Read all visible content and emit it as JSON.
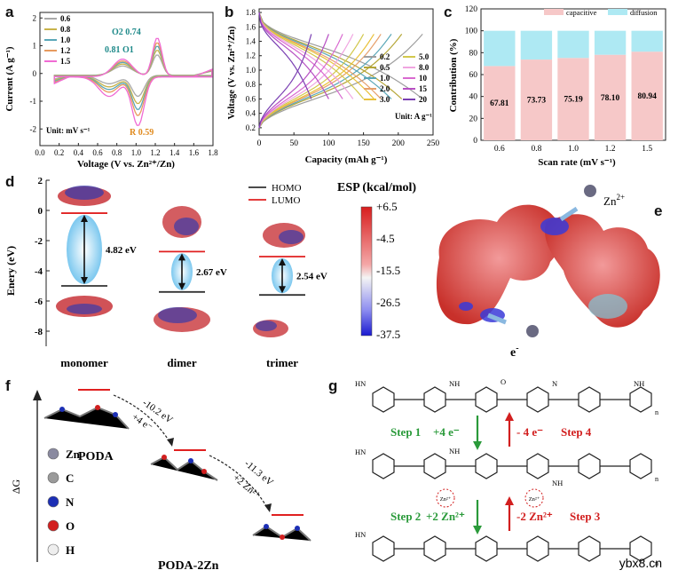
{
  "panel_labels": {
    "a": "a",
    "b": "b",
    "c": "c",
    "d": "d",
    "e": "e",
    "f": "f",
    "g": "g"
  },
  "chart_data": [
    {
      "type": "line",
      "panel": "a",
      "xlabel": "Voltage (V vs. Zn²⁺/Zn)",
      "ylabel": "Current (A g⁻¹)",
      "xlim": [
        0.0,
        1.8
      ],
      "ylim": [
        -2.6,
        2.2
      ],
      "xticks": [
        "0.0",
        "0.2",
        "0.4",
        "0.6",
        "0.8",
        "1.0",
        "1.2",
        "1.4",
        "1.6",
        "1.8"
      ],
      "yticks": [
        "-2",
        "-1",
        "0",
        "1",
        "2"
      ],
      "series": [
        {
          "name": "0.6",
          "color": "#a9a9a9",
          "anodic_peak": 0.74,
          "cathodic_peak": -0.75
        },
        {
          "name": "0.8",
          "color": "#c8b34a",
          "anodic_peak": 0.92,
          "cathodic_peak": -1.0
        },
        {
          "name": "1.0",
          "color": "#5aa7b8",
          "anodic_peak": 1.08,
          "cathodic_peak": -1.2
        },
        {
          "name": "1.2",
          "color": "#e79b5f",
          "anodic_peak": 1.22,
          "cathodic_peak": -1.4
        },
        {
          "name": "1.5",
          "color": "#f06bd4",
          "anodic_peak": 1.4,
          "cathodic_peak": -1.75
        }
      ],
      "annotations": [
        {
          "text": "O2",
          "value": "0.74",
          "color": "#1f8a8a"
        },
        {
          "text": "0.81",
          "value": "O1",
          "color": "#1f8a8a"
        },
        {
          "text": "R",
          "value": "0.59",
          "color": "#e08a1e"
        }
      ],
      "unit_note": "Unit: mV s⁻¹"
    },
    {
      "type": "line",
      "panel": "b",
      "xlabel": "Capacity (mAh g⁻¹)",
      "ylabel": "Voltage (V vs. Zn²⁺/Zn)",
      "xlim": [
        0,
        250
      ],
      "ylim": [
        0.1,
        1.85
      ],
      "xticks": [
        "0",
        "50",
        "100",
        "150",
        "200",
        "250"
      ],
      "yticks": [
        "0.2",
        "0.4",
        "0.6",
        "0.8",
        "1.0",
        "1.2",
        "1.4",
        "1.6",
        "1.8"
      ],
      "series": [
        {
          "name": "0.2",
          "color": "#9e9e9e",
          "capacity": 235
        },
        {
          "name": "0.5",
          "color": "#b5a637",
          "capacity": 205
        },
        {
          "name": "1.0",
          "color": "#5aa7b8",
          "capacity": 190
        },
        {
          "name": "2.0",
          "color": "#e6a06b",
          "capacity": 175
        },
        {
          "name": "3.0",
          "color": "#e9c13a",
          "capacity": 165
        },
        {
          "name": "5.0",
          "color": "#d2c84d",
          "capacity": 150
        },
        {
          "name": "8.0",
          "color": "#f0a5e0",
          "capacity": 135
        },
        {
          "name": "10",
          "color": "#d96ad0",
          "capacity": 120
        },
        {
          "name": "15",
          "color": "#b74fc3",
          "capacity": 100
        },
        {
          "name": "20",
          "color": "#7a3fb2",
          "capacity": 75
        }
      ],
      "unit_note": "Unit: A g⁻¹"
    },
    {
      "type": "bar",
      "panel": "c",
      "xlabel": "Scan rate (mV s⁻¹)",
      "ylabel": "Contribution (%)",
      "ylim": [
        0,
        120
      ],
      "yticks": [
        "0",
        "20",
        "40",
        "60",
        "80",
        "100",
        "120"
      ],
      "categories": [
        "0.6",
        "0.8",
        "1.0",
        "1.2",
        "1.5"
      ],
      "series": [
        {
          "name": "capacitive",
          "color": "#f6c8c8",
          "values": [
            67.81,
            73.73,
            75.19,
            78.1,
            80.94
          ]
        },
        {
          "name": "diffusion",
          "color": "#aee9f3",
          "values": [
            32.19,
            26.27,
            24.81,
            21.9,
            19.06
          ]
        }
      ],
      "data_labels": [
        "67.81",
        "73.73",
        "75.19",
        "78.10",
        "80.94"
      ]
    },
    {
      "type": "bar",
      "panel": "d",
      "ylabel": "Enery (eV)",
      "ylim": [
        -9,
        2
      ],
      "yticks": [
        "2",
        "0",
        "-2",
        "-4",
        "-6",
        "-8"
      ],
      "categories": [
        "monomer",
        "dimer",
        "trimer"
      ],
      "series": [
        {
          "name": "HOMO",
          "color": "#333333",
          "values": [
            -5.0,
            -5.4,
            -5.6
          ]
        },
        {
          "name": "LUMO",
          "color": "#e02020",
          "values": [
            -0.18,
            -2.73,
            -3.06
          ]
        }
      ],
      "gaps": [
        "4.82 eV",
        "2.67 eV",
        "2.54 eV"
      ]
    }
  ],
  "panel_e": {
    "esp_title": "ESP",
    "esp_unit": "(kcal/mol)",
    "scale": [
      "+6.5",
      "-4.5",
      "-15.5",
      "-26.5",
      "-37.5"
    ],
    "zn_label": "Zn",
    "zn_sup": "2+",
    "e_label": "e",
    "e_sup": "-"
  },
  "panel_f": {
    "axis": "ΔG",
    "mol1": "PODA",
    "mol2": "PODA-2Zn",
    "step1_energy": "-10.2 eV",
    "step1_species": "+4 e⁻",
    "step2_energy": "-11.3 eV",
    "step2_species": "+2 Zn²⁺",
    "legend": [
      {
        "label": "Zn",
        "color": "#8a8aa0"
      },
      {
        "label": "C",
        "color": "#9a9a9a"
      },
      {
        "label": "N",
        "color": "#1c2fb5"
      },
      {
        "label": "O",
        "color": "#d21f1f"
      },
      {
        "label": "H",
        "color": "#eeeeee"
      }
    ]
  },
  "panel_g": {
    "step1": "Step 1",
    "step1_rxn": "+4 e⁻",
    "step4_rxn": "- 4 e⁻",
    "step4": "Step 4",
    "step2": "Step 2",
    "step2_rxn": "+2 Zn²⁺",
    "step3_rxn": "-2 Zn²⁺",
    "step3": "Step 3",
    "zn_tag": "Zn²⁺",
    "nh": "NH",
    "hn": "HN",
    "o": "O",
    "n": "N",
    "n_sub": "n"
  },
  "watermark": "ybx8.cn"
}
